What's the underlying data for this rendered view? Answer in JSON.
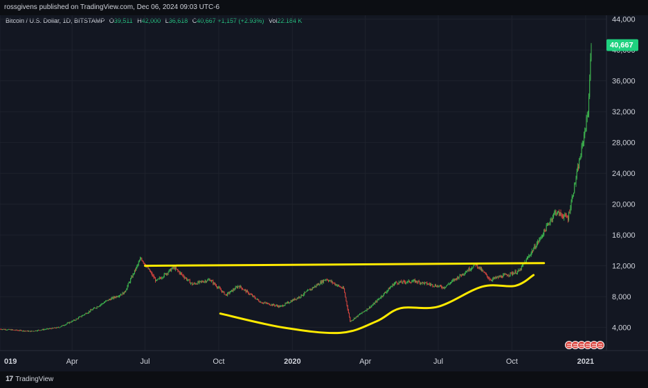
{
  "header": {
    "publisher_line": "rossgivens published on TradingView.com, Dec 06, 2024 09:03 UTC-6"
  },
  "legend": {
    "symbol": "Bitcoin / U.S. Dollar, 1D, BITSTAMP",
    "open_label": "O",
    "open": "39,511",
    "high_label": "H",
    "high": "42,000",
    "low_label": "L",
    "low": "36,618",
    "close_label": "C",
    "close": "40,667",
    "change": "+1,157 (+2.93%)",
    "vol_label": "Vol",
    "vol": "22.184 K"
  },
  "price_badge": "40,667",
  "brand": {
    "name": "TradingView"
  },
  "colors": {
    "background": "#131722",
    "up": "#26a69a",
    "candle_green": "#3fb950",
    "candle_red": "#d9463f",
    "annotation": "#ffea00",
    "badge": "#1fd17f"
  },
  "chart_data": {
    "type": "candlestick",
    "title": "Bitcoin / U.S. Dollar, 1D, BITSTAMP",
    "xlabel": "",
    "ylabel": "",
    "x_ticks": [
      "019",
      "Apr",
      "Jul",
      "Oct",
      "2020",
      "Apr",
      "Jul",
      "Oct",
      "2021"
    ],
    "y_ticks": [
      "4,000",
      "8,000",
      "12,000",
      "16,000",
      "20,000",
      "24,000",
      "28,000",
      "32,000",
      "36,000",
      "40,000",
      "44,000"
    ],
    "ylim": [
      1000,
      44500
    ],
    "xlim": [
      "2019-01-01",
      "2021-01-27"
    ],
    "scale": "linear",
    "price_path": [
      {
        "date": "2019-01-01",
        "close": 3800
      },
      {
        "date": "2019-02-08",
        "close": 3500
      },
      {
        "date": "2019-03-15",
        "close": 4000
      },
      {
        "date": "2019-04-05",
        "close": 5000
      },
      {
        "date": "2019-05-15",
        "close": 7500
      },
      {
        "date": "2019-06-05",
        "close": 8500
      },
      {
        "date": "2019-06-26",
        "close": 13000
      },
      {
        "date": "2019-07-15",
        "close": 10000
      },
      {
        "date": "2019-08-06",
        "close": 11800
      },
      {
        "date": "2019-08-29",
        "close": 9600
      },
      {
        "date": "2019-09-20",
        "close": 10200
      },
      {
        "date": "2019-10-10",
        "close": 8200
      },
      {
        "date": "2019-10-26",
        "close": 9400
      },
      {
        "date": "2019-11-22",
        "close": 7300
      },
      {
        "date": "2019-12-17",
        "close": 6700
      },
      {
        "date": "2020-01-10",
        "close": 8000
      },
      {
        "date": "2020-02-12",
        "close": 10300
      },
      {
        "date": "2020-03-05",
        "close": 9000
      },
      {
        "date": "2020-03-13",
        "close": 4800
      },
      {
        "date": "2020-04-10",
        "close": 6900
      },
      {
        "date": "2020-05-08",
        "close": 9800
      },
      {
        "date": "2020-06-02",
        "close": 10000
      },
      {
        "date": "2020-07-08",
        "close": 9200
      },
      {
        "date": "2020-08-17",
        "close": 12200
      },
      {
        "date": "2020-09-04",
        "close": 10200
      },
      {
        "date": "2020-10-10",
        "close": 11300
      },
      {
        "date": "2020-11-05",
        "close": 15500
      },
      {
        "date": "2020-11-24",
        "close": 19000
      },
      {
        "date": "2020-12-10",
        "close": 18200
      },
      {
        "date": "2020-12-26",
        "close": 26500
      },
      {
        "date": "2021-01-04",
        "close": 32000
      },
      {
        "date": "2021-01-08",
        "close": 40667
      }
    ],
    "annotations": [
      {
        "type": "horizontal-line",
        "label": "resistance",
        "from": "2019-07-01",
        "to": "2020-11-10",
        "y_from": 12000,
        "y_to": 12350
      },
      {
        "type": "curve",
        "label": "cup",
        "points": [
          {
            "date": "2019-10-03",
            "price": 5800
          },
          {
            "date": "2019-12-20",
            "price": 4000
          },
          {
            "date": "2020-03-01",
            "price": 3300
          },
          {
            "date": "2020-04-15",
            "price": 4800
          },
          {
            "date": "2020-05-15",
            "price": 6500
          },
          {
            "date": "2020-07-01",
            "price": 6700
          },
          {
            "date": "2020-08-25",
            "price": 9300
          },
          {
            "date": "2020-10-05",
            "price": 9400
          },
          {
            "date": "2020-10-28",
            "price": 10800
          }
        ]
      }
    ]
  }
}
